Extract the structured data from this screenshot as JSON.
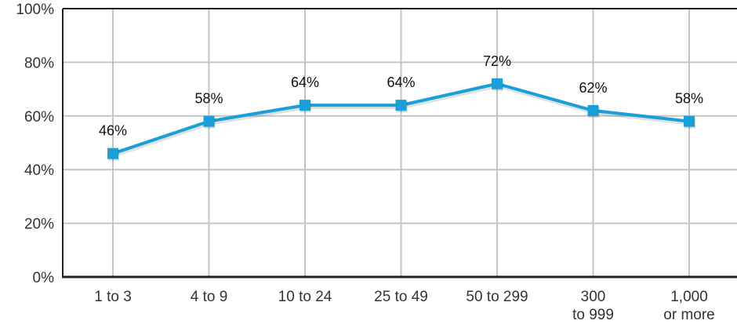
{
  "chart_data": {
    "type": "line",
    "title": "",
    "xlabel": "",
    "ylabel": "",
    "categories": [
      [
        "1 to 3"
      ],
      [
        "4 to 9"
      ],
      [
        "10 to 24"
      ],
      [
        "25 to 49"
      ],
      [
        "50 to 299"
      ],
      [
        "300",
        "to 999"
      ],
      [
        "1,000",
        "or more"
      ]
    ],
    "series": [
      {
        "values": [
          46,
          58,
          64,
          64,
          72,
          62,
          58
        ],
        "data_labels": [
          "46%",
          "58%",
          "64%",
          "64%",
          "72%",
          "62%",
          "58%"
        ],
        "color": "#1aa0d8"
      }
    ],
    "y_ticks": [
      0,
      20,
      40,
      60,
      80,
      100
    ],
    "y_tick_labels": [
      "0%",
      "20%",
      "40%",
      "60%",
      "80%",
      "100%"
    ],
    "ylim": [
      0,
      100
    ],
    "grid": true,
    "legend": "none",
    "colors": {
      "line": "#1aa0d8",
      "grid": "#c4c4c4",
      "axis": "#222222"
    }
  }
}
